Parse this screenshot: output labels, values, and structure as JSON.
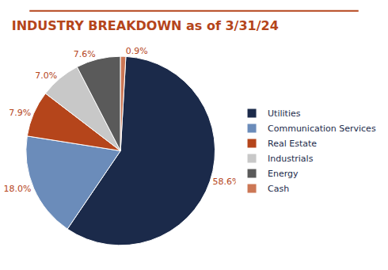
{
  "chart_data": {
    "type": "pie",
    "title": "INDUSTRY BREAKDOWN as of 3/31/24",
    "categories": [
      "Utilities",
      "Communication Services",
      "Real Estate",
      "Industrials",
      "Energy",
      "Cash"
    ],
    "values": [
      58.6,
      18.0,
      7.9,
      7.0,
      7.6,
      0.9
    ],
    "value_labels": [
      "58.6%",
      "18.0%",
      "7.9%",
      "7.0%",
      "7.6%",
      "0.9%"
    ],
    "colors": [
      "#1b2a4a",
      "#6b8cba",
      "#b5451b",
      "#c8c8c8",
      "#5a5a5a",
      "#cc7755"
    ],
    "data_labels": true,
    "legend": "right"
  }
}
